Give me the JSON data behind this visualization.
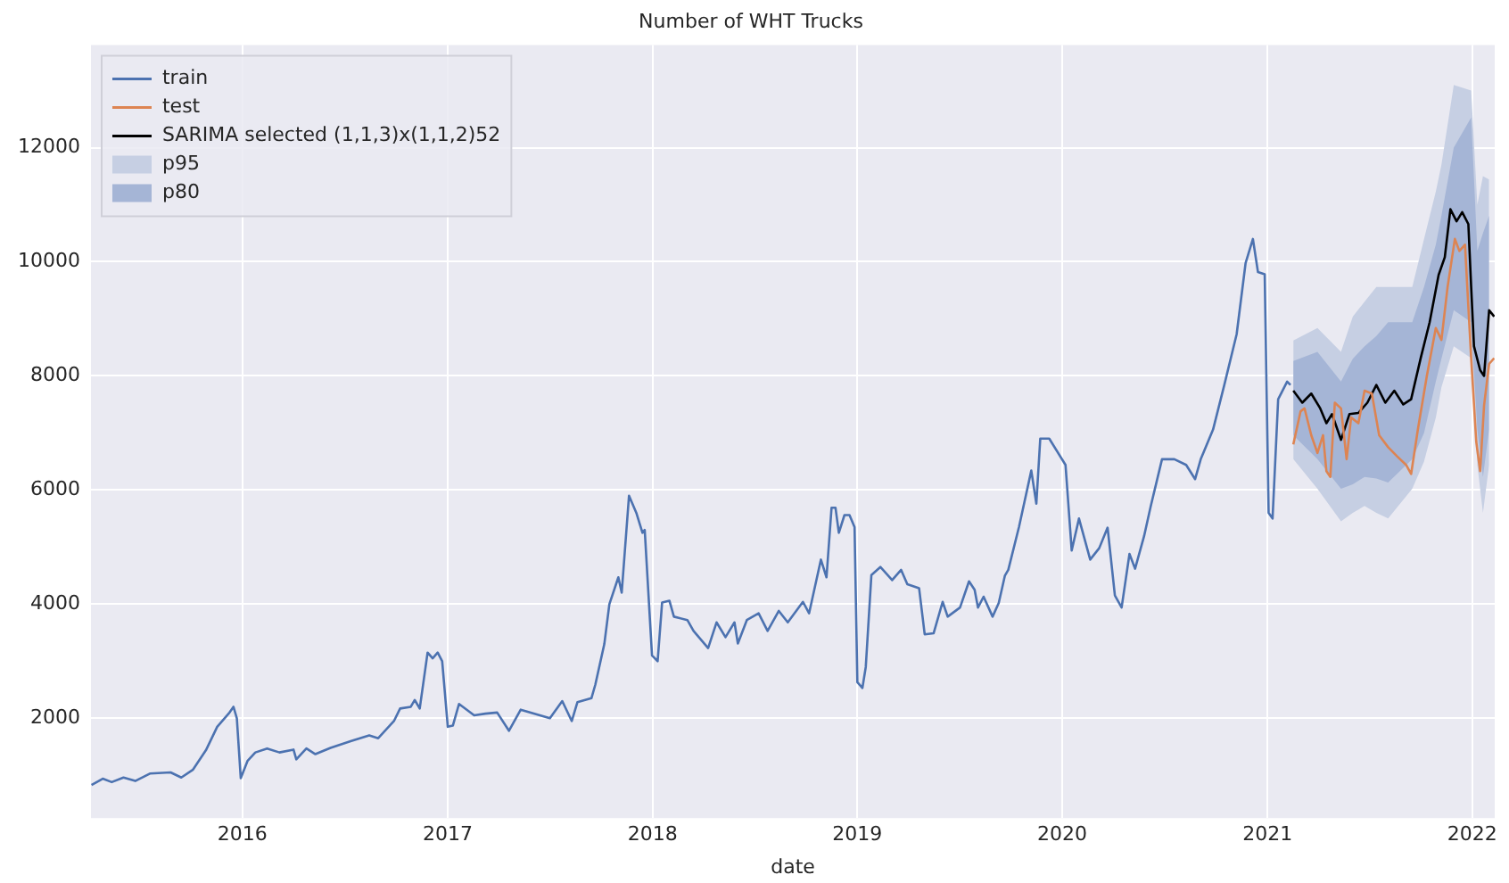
{
  "chart_data": {
    "type": "line",
    "title": "Number of WHT Trucks",
    "xlabel": "date",
    "legend": "top left",
    "grid": true,
    "xlim": [
      "2015-04-06",
      "2022-02-10"
    ],
    "xticks": [
      "2016",
      "2017",
      "2018",
      "2019",
      "2020",
      "2021",
      "2022"
    ],
    "ylim": [
      250,
      13800
    ],
    "yticks": [
      2000,
      4000,
      6000,
      8000,
      10000,
      12000
    ],
    "series": [
      {
        "name": "train",
        "color": "#4c72b0",
        "x": [
          "2015-04-07",
          "2015-04-27",
          "2015-05-13",
          "2015-06-03",
          "2015-06-24",
          "2015-07-20",
          "2015-08-26",
          "2015-09-14",
          "2015-10-05",
          "2015-10-28",
          "2015-11-17",
          "2015-12-09",
          "2015-12-16",
          "2015-12-22",
          "2015-12-29",
          "2016-01-10",
          "2016-01-24",
          "2016-02-14",
          "2016-03-07",
          "2016-04-01",
          "2016-04-06",
          "2016-04-24",
          "2016-05-10",
          "2016-06-06",
          "2016-07-13",
          "2016-08-14",
          "2016-08-30",
          "2016-09-27",
          "2016-10-08",
          "2016-10-27",
          "2016-11-03",
          "2016-11-12",
          "2016-11-26",
          "2016-12-05",
          "2016-12-14",
          "2016-12-22",
          "2017-01-01",
          "2017-01-10",
          "2017-01-21",
          "2017-02-17",
          "2017-03-09",
          "2017-03-30",
          "2017-04-20",
          "2017-05-11",
          "2017-07-02",
          "2017-07-24",
          "2017-08-10",
          "2017-08-20",
          "2017-09-14",
          "2017-09-21",
          "2017-10-07",
          "2017-10-16",
          "2017-11-01",
          "2017-11-07",
          "2017-11-20",
          "2017-12-03",
          "2017-12-14",
          "2017-12-18",
          "2017-12-31",
          "2018-01-10",
          "2018-01-18",
          "2018-01-31",
          "2018-02-08",
          "2018-03-04",
          "2018-03-15",
          "2018-04-10",
          "2018-04-25",
          "2018-05-11",
          "2018-05-27",
          "2018-06-02",
          "2018-06-18",
          "2018-07-09",
          "2018-07-25",
          "2018-08-14",
          "2018-08-30",
          "2018-09-26",
          "2018-10-07",
          "2018-10-28",
          "2018-11-07",
          "2018-11-16",
          "2018-11-23",
          "2018-11-29",
          "2018-12-09",
          "2018-12-18",
          "2018-12-27",
          "2019-01-01",
          "2019-01-10",
          "2019-01-16",
          "2019-01-26",
          "2019-02-11",
          "2019-03-04",
          "2019-03-20",
          "2019-03-31",
          "2019-04-21",
          "2019-05-01",
          "2019-05-17",
          "2019-06-02",
          "2019-06-11",
          "2019-07-03",
          "2019-07-19",
          "2019-07-29",
          "2019-08-04",
          "2019-08-14",
          "2019-08-30",
          "2019-09-10",
          "2019-09-21",
          "2019-09-27",
          "2019-10-16",
          "2019-11-07",
          "2019-11-16",
          "2019-11-23",
          "2019-12-09",
          "2020-01-07",
          "2020-01-18",
          "2020-01-31",
          "2020-02-20",
          "2020-03-07",
          "2020-03-22",
          "2020-04-04",
          "2020-04-16",
          "2020-04-30",
          "2020-05-10",
          "2020-05-26",
          "2020-06-07",
          "2020-06-27",
          "2020-07-19",
          "2020-08-09",
          "2020-08-25",
          "2020-09-04",
          "2020-09-26",
          "2020-10-16",
          "2020-11-07",
          "2020-11-23",
          "2020-12-06",
          "2020-12-15",
          "2020-12-27",
          "2021-01-03",
          "2021-01-10",
          "2021-01-20",
          "2021-02-05",
          "2021-02-11"
        ],
        "values": [
          830,
          940,
          880,
          960,
          900,
          1030,
          1050,
          960,
          1100,
          1440,
          1850,
          2100,
          2200,
          2000,
          950,
          1250,
          1400,
          1470,
          1400,
          1450,
          1280,
          1470,
          1370,
          1480,
          1600,
          1700,
          1650,
          1950,
          2170,
          2200,
          2320,
          2170,
          3150,
          3050,
          3150,
          3000,
          1850,
          1870,
          2250,
          2050,
          2080,
          2100,
          1780,
          2150,
          2000,
          2300,
          1950,
          2280,
          2350,
          2590,
          3300,
          4000,
          4470,
          4200,
          5900,
          5600,
          5250,
          5300,
          3100,
          3000,
          4030,
          4060,
          3780,
          3720,
          3530,
          3230,
          3680,
          3420,
          3680,
          3310,
          3720,
          3840,
          3530,
          3880,
          3680,
          4040,
          3840,
          4780,
          4470,
          5690,
          5690,
          5250,
          5560,
          5560,
          5350,
          2630,
          2530,
          2900,
          4510,
          4650,
          4420,
          4600,
          4350,
          4280,
          3470,
          3490,
          4040,
          3780,
          3940,
          4400,
          4250,
          3940,
          4130,
          3780,
          4020,
          4500,
          4600,
          5350,
          6340,
          5760,
          6900,
          6900,
          6440,
          4940,
          5500,
          4780,
          4980,
          5340,
          4150,
          3940,
          4880,
          4620,
          5190,
          5720,
          6540,
          6540,
          6440,
          6190,
          6540,
          7060,
          7840,
          8730,
          9980,
          10400,
          9820,
          9780,
          5600,
          5500,
          7590,
          7900,
          7840
        ]
      },
      {
        "name": "test",
        "color": "#dd8452",
        "x": [
          "2021-02-16",
          "2021-03-01",
          "2021-03-08",
          "2021-03-20",
          "2021-03-31",
          "2021-04-10",
          "2021-04-16",
          "2021-04-23",
          "2021-05-01",
          "2021-05-12",
          "2021-05-22",
          "2021-05-30",
          "2021-06-12",
          "2021-06-23",
          "2021-07-06",
          "2021-07-19",
          "2021-08-04",
          "2021-08-20",
          "2021-09-05",
          "2021-09-14",
          "2021-09-26",
          "2021-10-12",
          "2021-10-28",
          "2021-11-07",
          "2021-11-18",
          "2021-12-01",
          "2021-12-09",
          "2021-12-19",
          "2021-12-30",
          "2022-01-08",
          "2022-01-15",
          "2022-01-22",
          "2022-01-31",
          "2022-02-09"
        ],
        "values": [
          6800,
          7380,
          7430,
          6960,
          6650,
          6960,
          6330,
          6230,
          7530,
          7430,
          6540,
          7270,
          7170,
          7740,
          7690,
          6960,
          6750,
          6590,
          6440,
          6280,
          7060,
          8000,
          8840,
          8630,
          9560,
          10400,
          10190,
          10300,
          8310,
          6850,
          6330,
          7480,
          8210,
          8310
        ]
      },
      {
        "name": "SARIMA selected (1,1,3)x(1,1,2)52",
        "color": "#000000",
        "x": [
          "2021-02-16",
          "2021-03-04",
          "2021-03-20",
          "2021-04-05",
          "2021-04-16",
          "2021-04-26",
          "2021-05-12",
          "2021-05-27",
          "2021-06-12",
          "2021-06-28",
          "2021-07-14",
          "2021-07-30",
          "2021-08-15",
          "2021-08-31",
          "2021-09-14",
          "2021-10-01",
          "2021-10-17",
          "2021-11-02",
          "2021-11-13",
          "2021-11-23",
          "2021-12-04",
          "2021-12-14",
          "2021-12-25",
          "2021-12-30",
          "2022-01-04",
          "2022-01-15",
          "2022-01-22",
          "2022-01-31",
          "2022-02-09"
        ],
        "values": [
          7740,
          7530,
          7690,
          7430,
          7170,
          7330,
          6880,
          7330,
          7350,
          7530,
          7840,
          7530,
          7740,
          7500,
          7590,
          8310,
          8940,
          9770,
          10080,
          10920,
          10710,
          10870,
          10660,
          9560,
          8520,
          8100,
          8000,
          9150,
          9040
        ]
      },
      {
        "name": "p95",
        "type": "area",
        "color": "#c6cfe3",
        "x": [
          "2021-02-16",
          "2021-03-31",
          "2021-05-12",
          "2021-06-02",
          "2021-06-23",
          "2021-07-14",
          "2021-08-04",
          "2021-09-16",
          "2021-10-07",
          "2021-10-28",
          "2021-11-07",
          "2021-11-29",
          "2021-12-30",
          "2022-01-10",
          "2022-01-20",
          "2022-01-31"
        ],
        "values": [
          null,
          null,
          null,
          null,
          null,
          null,
          null,
          null,
          null,
          null,
          null,
          null,
          null,
          null,
          null,
          null
        ],
        "lower": [
          6540,
          6020,
          5450,
          5600,
          5720,
          5600,
          5500,
          6020,
          6500,
          7270,
          7800,
          8520,
          8310,
          6440,
          5600,
          6440
        ],
        "upper": [
          8620,
          8840,
          8420,
          9040,
          9300,
          9560,
          9560,
          9560,
          10400,
          11230,
          11700,
          13100,
          13000,
          11000,
          11500,
          11440
        ]
      },
      {
        "name": "p80",
        "type": "area",
        "color": "#a5b5d6",
        "x": [
          "2021-02-16",
          "2021-03-31",
          "2021-05-12",
          "2021-06-02",
          "2021-06-23",
          "2021-07-14",
          "2021-08-04",
          "2021-09-16",
          "2021-10-07",
          "2021-10-28",
          "2021-11-07",
          "2021-11-29",
          "2021-12-30",
          "2022-01-10",
          "2022-01-20",
          "2022-01-31"
        ],
        "values": [
          null,
          null,
          null,
          null,
          null,
          null,
          null,
          null,
          null,
          null,
          null,
          null,
          null,
          null,
          null,
          null
        ],
        "lower": [
          6960,
          6540,
          6020,
          6100,
          6230,
          6200,
          6130,
          6540,
          7000,
          7900,
          8300,
          9150,
          8940,
          7060,
          6230,
          7060
        ],
        "upper": [
          8260,
          8420,
          7900,
          8300,
          8520,
          8700,
          8940,
          8940,
          9560,
          10300,
          10810,
          12000,
          12530,
          10190,
          10500,
          10810
        ]
      }
    ]
  }
}
